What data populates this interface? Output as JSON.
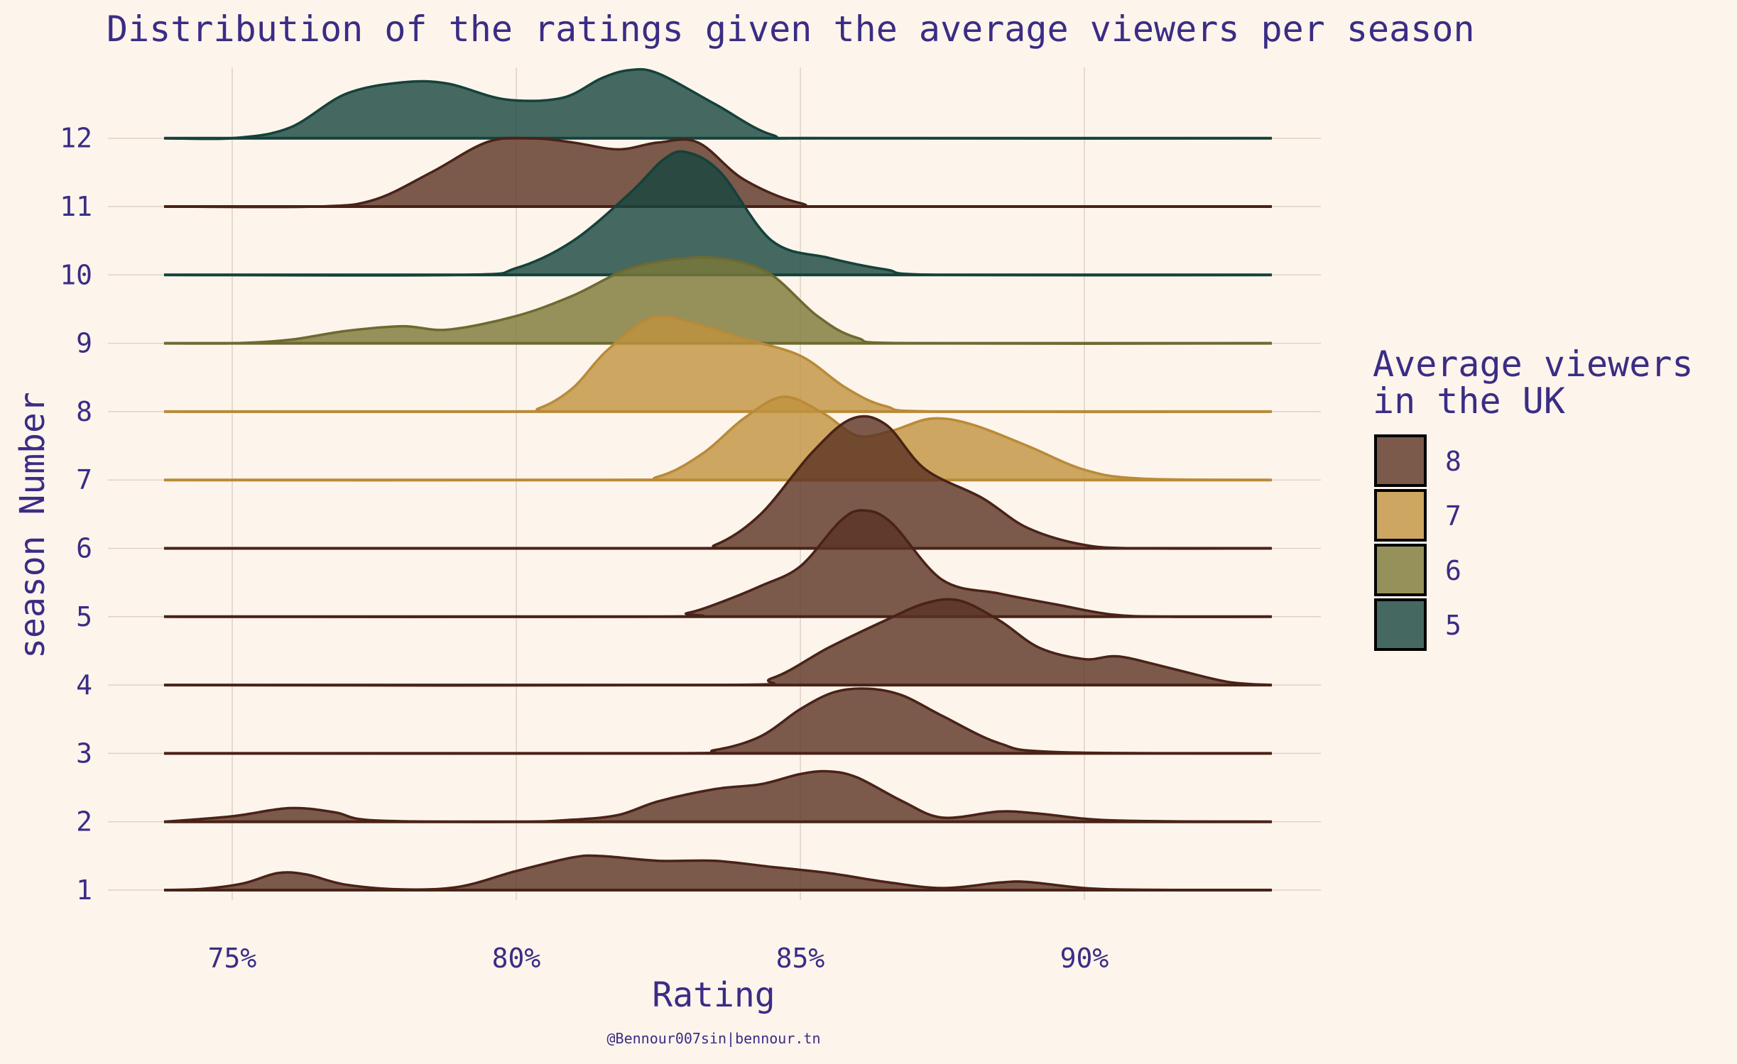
{
  "chart_data": {
    "type": "ridgeline",
    "title": "Distribution of the ratings given the average viewers per season",
    "xlabel": "Rating",
    "ylabel": "season Number",
    "x_ticks": [
      "75%",
      "80%",
      "85%",
      "90%"
    ],
    "x_tick_values": [
      75,
      80,
      85,
      90
    ],
    "xlim": [
      72.2,
      94.3
    ],
    "y_ticks": [
      "1",
      "2",
      "3",
      "4",
      "5",
      "6",
      "7",
      "8",
      "9",
      "10",
      "11",
      "12"
    ],
    "legend": {
      "title_line1": "Average viewers",
      "title_line2": "in the UK",
      "entries": [
        {
          "label": "8",
          "color": "#5a3223"
        },
        {
          "label": "7",
          "color": "#c0923f"
        },
        {
          "label": "6",
          "color": "#7c7837"
        },
        {
          "label": "5",
          "color": "#17453f"
        }
      ]
    },
    "caption": "@Bennour007sin|bennour.tn",
    "palette": {
      "8": {
        "fill": "#5a3223",
        "line": "#4a2217"
      },
      "7": {
        "fill": "#c0923f",
        "line": "#b98a38"
      },
      "6": {
        "fill": "#7c7837",
        "line": "#6d6a30"
      },
      "5": {
        "fill": "#17453f",
        "line": "#14423a"
      }
    },
    "series": [
      {
        "name": "1",
        "viewers": "8",
        "density": [
          [
            73.8,
            0
          ],
          [
            74.5,
            0.02
          ],
          [
            75.2,
            0.1
          ],
          [
            75.8,
            0.25
          ],
          [
            76.3,
            0.23
          ],
          [
            77,
            0.08
          ],
          [
            78,
            0.01
          ],
          [
            79,
            0.05
          ],
          [
            80,
            0.28
          ],
          [
            81,
            0.48
          ],
          [
            81.5,
            0.5
          ],
          [
            82.5,
            0.43
          ],
          [
            83.5,
            0.43
          ],
          [
            84.5,
            0.34
          ],
          [
            85.5,
            0.25
          ],
          [
            86.5,
            0.12
          ],
          [
            87.5,
            0.03
          ],
          [
            88.5,
            0.11
          ],
          [
            89,
            0.12
          ],
          [
            90,
            0.03
          ],
          [
            91,
            0.005
          ],
          [
            93.3,
            0
          ]
        ]
      },
      {
        "name": "2",
        "viewers": "8",
        "density": [
          [
            73.8,
            0
          ],
          [
            75,
            0.08
          ],
          [
            76,
            0.2
          ],
          [
            76.8,
            0.14
          ],
          [
            77.5,
            0.02
          ],
          [
            80,
            0
          ],
          [
            81,
            0.03
          ],
          [
            81.8,
            0.1
          ],
          [
            82.5,
            0.3
          ],
          [
            83.5,
            0.48
          ],
          [
            84.3,
            0.55
          ],
          [
            85,
            0.7
          ],
          [
            85.5,
            0.74
          ],
          [
            86,
            0.65
          ],
          [
            86.8,
            0.3
          ],
          [
            87.5,
            0.06
          ],
          [
            88.5,
            0.15
          ],
          [
            89.2,
            0.12
          ],
          [
            90.5,
            0.02
          ],
          [
            93.3,
            0
          ]
        ]
      },
      {
        "name": "3",
        "viewers": "8",
        "density": [
          [
            73.8,
            0
          ],
          [
            82.5,
            0
          ],
          [
            83.5,
            0.05
          ],
          [
            84.3,
            0.25
          ],
          [
            85,
            0.65
          ],
          [
            85.6,
            0.9
          ],
          [
            86.2,
            0.95
          ],
          [
            86.8,
            0.85
          ],
          [
            87.5,
            0.55
          ],
          [
            88.5,
            0.15
          ],
          [
            89.5,
            0.02
          ],
          [
            93.3,
            0
          ]
        ]
      },
      {
        "name": "4",
        "viewers": "8",
        "density": [
          [
            73.8,
            0
          ],
          [
            83.5,
            0
          ],
          [
            84.5,
            0.1
          ],
          [
            85.5,
            0.55
          ],
          [
            86.5,
            0.95
          ],
          [
            87.2,
            1.2
          ],
          [
            87.8,
            1.24
          ],
          [
            88.5,
            0.95
          ],
          [
            89.2,
            0.55
          ],
          [
            90,
            0.38
          ],
          [
            90.6,
            0.42
          ],
          [
            91.5,
            0.25
          ],
          [
            92.5,
            0.05
          ],
          [
            93.3,
            0
          ]
        ]
      },
      {
        "name": "5",
        "viewers": "8",
        "density": [
          [
            73.8,
            0
          ],
          [
            82.5,
            0
          ],
          [
            83,
            0.05
          ],
          [
            83.5,
            0.18
          ],
          [
            84.3,
            0.45
          ],
          [
            85,
            0.74
          ],
          [
            85.7,
            1.4
          ],
          [
            86.1,
            1.56
          ],
          [
            86.6,
            1.38
          ],
          [
            87.5,
            0.54
          ],
          [
            88.5,
            0.34
          ],
          [
            89.5,
            0.18
          ],
          [
            90.5,
            0.03
          ],
          [
            91.5,
            0
          ],
          [
            93.3,
            0
          ]
        ]
      },
      {
        "name": "6",
        "viewers": "8",
        "density": [
          [
            73.8,
            0
          ],
          [
            82.8,
            0
          ],
          [
            83.5,
            0.05
          ],
          [
            84.3,
            0.5
          ],
          [
            85.2,
            1.4
          ],
          [
            85.9,
            1.9
          ],
          [
            86.5,
            1.82
          ],
          [
            87.2,
            1.16
          ],
          [
            88.2,
            0.74
          ],
          [
            89,
            0.3
          ],
          [
            90,
            0.05
          ],
          [
            91,
            0
          ],
          [
            93.3,
            0
          ]
        ]
      },
      {
        "name": "7",
        "viewers": "7",
        "density": [
          [
            73.8,
            0
          ],
          [
            81.5,
            0
          ],
          [
            82.5,
            0.05
          ],
          [
            83.3,
            0.4
          ],
          [
            84,
            0.9
          ],
          [
            84.7,
            1.22
          ],
          [
            85.4,
            0.98
          ],
          [
            86,
            0.65
          ],
          [
            86.6,
            0.72
          ],
          [
            87.3,
            0.9
          ],
          [
            88,
            0.82
          ],
          [
            89,
            0.5
          ],
          [
            90,
            0.15
          ],
          [
            91,
            0.02
          ],
          [
            93.3,
            0
          ]
        ]
      },
      {
        "name": "8",
        "viewers": "7",
        "density": [
          [
            73.8,
            0
          ],
          [
            79.8,
            0
          ],
          [
            80.4,
            0.05
          ],
          [
            81,
            0.35
          ],
          [
            81.6,
            0.9
          ],
          [
            82.4,
            1.38
          ],
          [
            83.2,
            1.28
          ],
          [
            84,
            1.07
          ],
          [
            85,
            0.82
          ],
          [
            85.8,
            0.35
          ],
          [
            86.5,
            0.08
          ],
          [
            87.5,
            0
          ],
          [
            93.3,
            0
          ]
        ]
      },
      {
        "name": "9",
        "viewers": "6",
        "density": [
          [
            73.8,
            0
          ],
          [
            75,
            0
          ],
          [
            76,
            0.05
          ],
          [
            77,
            0.18
          ],
          [
            78,
            0.25
          ],
          [
            78.8,
            0.2
          ],
          [
            80,
            0.4
          ],
          [
            81,
            0.7
          ],
          [
            82,
            1.1
          ],
          [
            83,
            1.25
          ],
          [
            83.8,
            1.22
          ],
          [
            84.5,
            1.0
          ],
          [
            85.3,
            0.4
          ],
          [
            86,
            0.08
          ],
          [
            87,
            0
          ],
          [
            93.3,
            0
          ]
        ]
      },
      {
        "name": "10",
        "viewers": "5",
        "density": [
          [
            73.8,
            0
          ],
          [
            79,
            0
          ],
          [
            80,
            0.1
          ],
          [
            81,
            0.5
          ],
          [
            82,
            1.2
          ],
          [
            82.6,
            1.7
          ],
          [
            83,
            1.8
          ],
          [
            83.6,
            1.5
          ],
          [
            84.5,
            0.5
          ],
          [
            85.5,
            0.25
          ],
          [
            86.5,
            0.08
          ],
          [
            87.5,
            0
          ],
          [
            93.3,
            0
          ]
        ]
      },
      {
        "name": "11",
        "viewers": "8",
        "density": [
          [
            73.8,
            0
          ],
          [
            76.5,
            0
          ],
          [
            77.5,
            0.1
          ],
          [
            78.5,
            0.5
          ],
          [
            79.5,
            0.95
          ],
          [
            80.3,
            1.0
          ],
          [
            81,
            0.94
          ],
          [
            81.8,
            0.84
          ],
          [
            82.5,
            0.94
          ],
          [
            83.2,
            0.94
          ],
          [
            84,
            0.4
          ],
          [
            85,
            0.05
          ],
          [
            86,
            0
          ],
          [
            93.3,
            0
          ]
        ]
      },
      {
        "name": "12",
        "viewers": "5",
        "density": [
          [
            73.8,
            0
          ],
          [
            75,
            0
          ],
          [
            76,
            0.15
          ],
          [
            77,
            0.65
          ],
          [
            78,
            0.82
          ],
          [
            78.8,
            0.8
          ],
          [
            79.8,
            0.57
          ],
          [
            80.8,
            0.59
          ],
          [
            81.5,
            0.88
          ],
          [
            82,
            1.0
          ],
          [
            82.5,
            0.95
          ],
          [
            83.5,
            0.5
          ],
          [
            84.5,
            0.05
          ],
          [
            85.5,
            0
          ],
          [
            93.3,
            0
          ]
        ]
      }
    ]
  }
}
